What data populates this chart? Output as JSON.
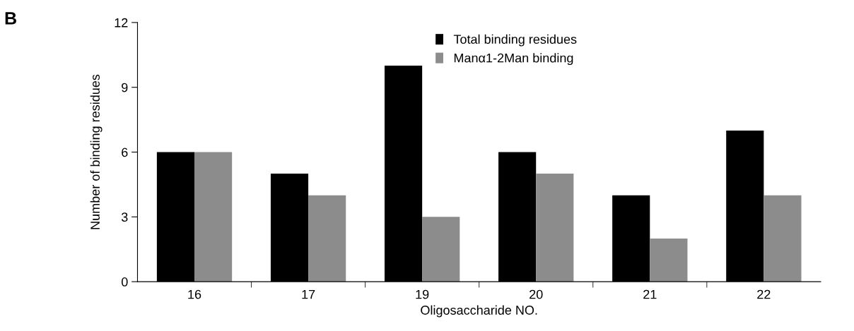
{
  "chart_data": {
    "type": "bar",
    "xlabel": "Oligosaccharide NO.",
    "ylabel": "Number of binding residues",
    "categories": [
      "16",
      "17",
      "19",
      "20",
      "21",
      "22"
    ],
    "series": [
      {
        "name": "Total binding residues",
        "color": "#000000",
        "values": [
          6,
          5,
          10,
          6,
          4,
          7
        ]
      },
      {
        "name": "Manα1-2Man binding",
        "color": "#8c8c8c",
        "values": [
          6,
          4,
          3,
          5,
          2,
          4
        ]
      }
    ],
    "ylim": [
      0,
      12
    ],
    "yticks": [
      0,
      3,
      6,
      9,
      12
    ],
    "grid": false,
    "legend": "top right",
    "annotations": [
      "B"
    ]
  }
}
